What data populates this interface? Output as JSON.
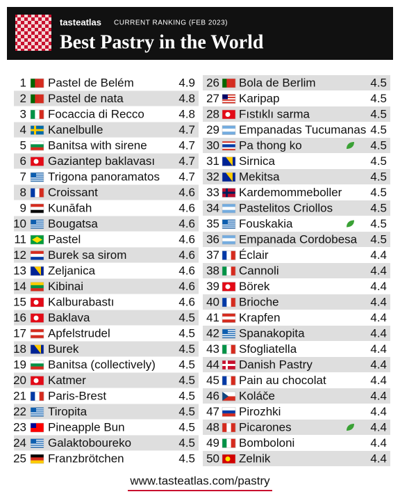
{
  "header": {
    "brand": "tasteatlas",
    "subtitle": "CURRENT RANKING (FEB 2023)",
    "title": "Best Pastry in the World"
  },
  "table": {
    "rows": [
      {
        "rank": 1,
        "name": "Pastel de Belém",
        "score": 4.9
      },
      {
        "rank": 2,
        "name": "Pastel de nata",
        "score": 4.8
      },
      {
        "rank": 3,
        "name": "Focaccia di Recco",
        "score": 4.8
      },
      {
        "rank": 4,
        "name": "Kanelbulle",
        "score": 4.7
      },
      {
        "rank": 5,
        "name": "Banitsa with sirene",
        "score": 4.7
      },
      {
        "rank": 6,
        "name": "Gaziantep baklavası",
        "score": 4.7
      },
      {
        "rank": 7,
        "name": "Trigona panoramatos",
        "score": 4.7
      },
      {
        "rank": 8,
        "name": "Croissant",
        "score": 4.6
      },
      {
        "rank": 9,
        "name": "Kunāfah",
        "score": 4.6
      },
      {
        "rank": 10,
        "name": "Bougatsa",
        "score": 4.6
      },
      {
        "rank": 11,
        "name": "Pastel",
        "score": 4.6
      },
      {
        "rank": 12,
        "name": "Burek sa sirom",
        "score": 4.6
      },
      {
        "rank": 13,
        "name": "Zeljanica",
        "score": 4.6
      },
      {
        "rank": 14,
        "name": "Kibinai",
        "score": 4.6
      },
      {
        "rank": 15,
        "name": "Kalburabastı",
        "score": 4.6
      },
      {
        "rank": 16,
        "name": "Baklava",
        "score": 4.5
      },
      {
        "rank": 17,
        "name": "Apfelstrudel",
        "score": 4.5
      },
      {
        "rank": 18,
        "name": "Burek",
        "score": 4.5
      },
      {
        "rank": 19,
        "name": "Banitsa (collectively)",
        "score": 4.5
      },
      {
        "rank": 20,
        "name": "Katmer",
        "score": 4.5
      },
      {
        "rank": 21,
        "name": "Paris-Brest",
        "score": 4.5
      },
      {
        "rank": 22,
        "name": "Tiropita",
        "score": 4.5
      },
      {
        "rank": 23,
        "name": "Pineapple Bun",
        "score": 4.5
      },
      {
        "rank": 24,
        "name": "Galaktoboureko",
        "score": 4.5
      },
      {
        "rank": 25,
        "name": "Franzbrötchen",
        "score": 4.5
      },
      {
        "rank": 26,
        "name": "Bola de Berlim",
        "score": 4.5
      },
      {
        "rank": 27,
        "name": "Karipap",
        "score": 4.5
      },
      {
        "rank": 28,
        "name": "Fıstıklı sarma",
        "score": 4.5
      },
      {
        "rank": 29,
        "name": "Empanadas Tucumanas",
        "score": 4.5
      },
      {
        "rank": 30,
        "name": "Pa thong ko",
        "score": 4.5,
        "vegetarian": true
      },
      {
        "rank": 31,
        "name": "Sirnica",
        "score": 4.5
      },
      {
        "rank": 32,
        "name": "Mekitsa",
        "score": 4.5
      },
      {
        "rank": 33,
        "name": "Kardemommeboller",
        "score": 4.5
      },
      {
        "rank": 34,
        "name": "Pastelitos Criollos",
        "score": 4.5
      },
      {
        "rank": 35,
        "name": "Fouskakia",
        "score": 4.5,
        "vegetarian": true
      },
      {
        "rank": 36,
        "name": "Empanada Cordobesa",
        "score": 4.5
      },
      {
        "rank": 37,
        "name": "Éclair",
        "score": 4.4
      },
      {
        "rank": 38,
        "name": "Cannoli",
        "score": 4.4
      },
      {
        "rank": 39,
        "name": "Börek",
        "score": 4.4
      },
      {
        "rank": 40,
        "name": "Brioche",
        "score": 4.4
      },
      {
        "rank": 41,
        "name": "Krapfen",
        "score": 4.4
      },
      {
        "rank": 42,
        "name": "Spanakopita",
        "score": 4.4
      },
      {
        "rank": 43,
        "name": "Sfogliatella",
        "score": 4.4
      },
      {
        "rank": 44,
        "name": "Danish Pastry",
        "score": 4.4
      },
      {
        "rank": 45,
        "name": "Pain au chocolat",
        "score": 4.4
      },
      {
        "rank": 46,
        "name": "Koláče",
        "score": 4.4
      },
      {
        "rank": 47,
        "name": "Pirozhki",
        "score": 4.4
      },
      {
        "rank": 48,
        "name": "Picarones",
        "score": 4.4,
        "vegetarian": true
      },
      {
        "rank": 49,
        "name": "Bomboloni",
        "score": 4.4
      },
      {
        "rank": 50,
        "name": "Zelnik",
        "score": 4.4
      }
    ]
  },
  "footer": {
    "url": "www.tasteatlas.com/pastry"
  }
}
